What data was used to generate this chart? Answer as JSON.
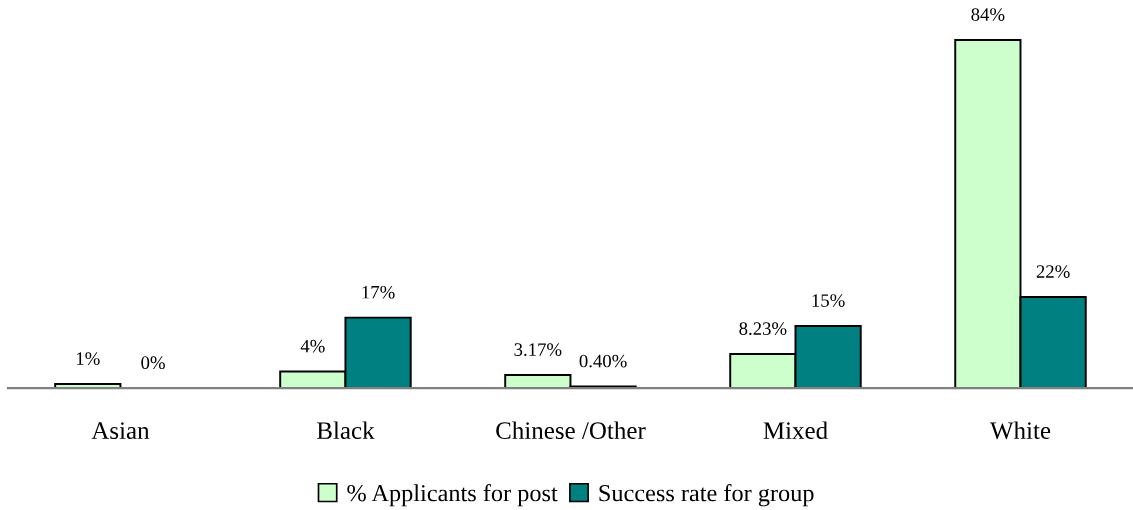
{
  "chart_data": {
    "type": "bar",
    "categories": [
      "Asian",
      "Black",
      "Chinese /Other",
      "Mixed",
      "White"
    ],
    "series": [
      {
        "name": "% Applicants for post",
        "color": "#ccffcc",
        "values": [
          1,
          4,
          3.17,
          8.23,
          84
        ],
        "value_labels": [
          "1%",
          "4%",
          "3.17%",
          "8.23%",
          "84%"
        ]
      },
      {
        "name": "Success rate for group",
        "color": "#008080",
        "values": [
          0,
          17,
          0.4,
          15,
          22
        ],
        "value_labels": [
          "0%",
          "17%",
          "0.40%",
          "15%",
          "22%"
        ]
      }
    ],
    "legend": "bottom"
  }
}
